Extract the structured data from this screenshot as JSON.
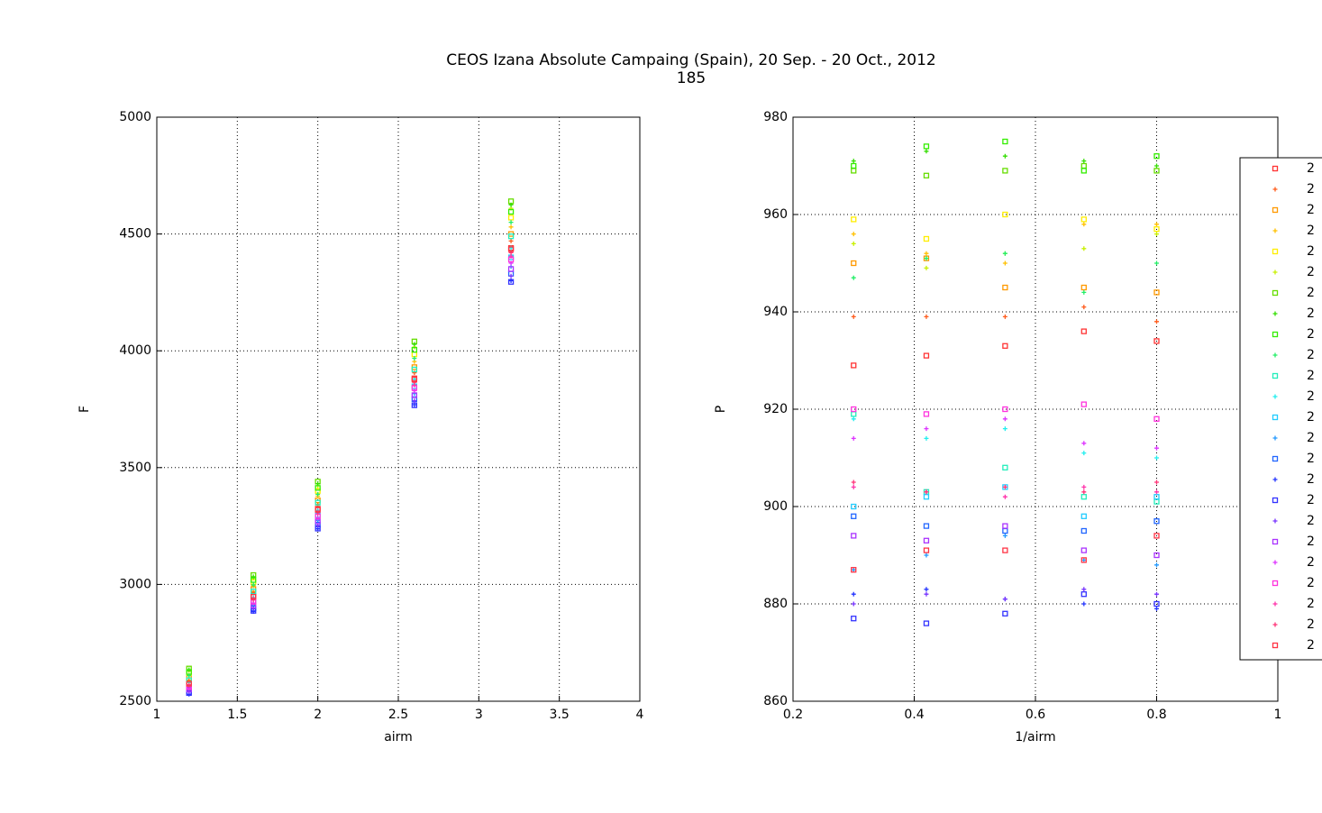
{
  "title": "CEOS Izana Absolute Campaing (Spain), 20 Sep. - 20 Oct., 2012",
  "subtitle": "185",
  "chart_data": [
    {
      "type": "scatter",
      "xlabel": "airm",
      "ylabel": "F",
      "xlim": [
        1,
        4
      ],
      "xticks": [
        1,
        1.5,
        2,
        2.5,
        3,
        3.5,
        4
      ],
      "ylim": [
        2500,
        5000
      ],
      "yticks": [
        2500,
        3000,
        3500,
        4000,
        4500,
        5000
      ],
      "grid": true,
      "x": [
        1.2,
        1.6,
        2.0,
        2.6,
        3.2
      ],
      "series": [
        {
          "name": "2",
          "color": "#ff3333",
          "marker": "square",
          "values": [
            2580,
            2952,
            3324,
            3882,
            4440
          ]
        },
        {
          "name": "2",
          "color": "#ff5a1a",
          "marker": "plus",
          "values": [
            2590,
            2966,
            3342,
            3906,
            4470
          ]
        },
        {
          "name": "2",
          "color": "#ff9900",
          "marker": "square",
          "values": [
            2600,
            2980,
            3360,
            3930,
            4500
          ]
        },
        {
          "name": "2",
          "color": "#ffc000",
          "marker": "plus",
          "values": [
            2610,
            2994,
            3378,
            3954,
            4530
          ]
        },
        {
          "name": "2",
          "color": "#ffee00",
          "marker": "square",
          "values": [
            2620,
            3010,
            3400,
            3985,
            4570
          ]
        },
        {
          "name": "2",
          "color": "#c8f000",
          "marker": "plus",
          "values": [
            2630,
            3026,
            3422,
            4016,
            4610
          ]
        },
        {
          "name": "2",
          "color": "#66dd00",
          "marker": "square",
          "values": [
            2640,
            3040,
            3440,
            4040,
            4640
          ]
        },
        {
          "name": "2",
          "color": "#33dd00",
          "marker": "plus",
          "values": [
            2635,
            3033,
            3431,
            4028,
            4625
          ]
        },
        {
          "name": "2",
          "color": "#33ee00",
          "marker": "square",
          "values": [
            2625,
            3019,
            3413,
            4004,
            4595
          ]
        },
        {
          "name": "2",
          "color": "#22ee66",
          "marker": "plus",
          "values": [
            2610,
            2998,
            3386,
            3968,
            4550
          ]
        },
        {
          "name": "2",
          "color": "#22eebb",
          "marker": "square",
          "values": [
            2590,
            2970,
            3350,
            3920,
            4490
          ]
        },
        {
          "name": "2",
          "color": "#22eeee",
          "marker": "plus",
          "values": [
            2570,
            2944,
            3318,
            3879,
            4440
          ]
        },
        {
          "name": "2",
          "color": "#22ccff",
          "marker": "square",
          "values": [
            2560,
            2928,
            3296,
            3848,
            4400
          ]
        },
        {
          "name": "2",
          "color": "#2299ff",
          "marker": "plus",
          "values": [
            2550,
            2912,
            3274,
            3817,
            4360
          ]
        },
        {
          "name": "2",
          "color": "#2266ff",
          "marker": "square",
          "values": [
            2540,
            2898,
            3256,
            3793,
            4330
          ]
        },
        {
          "name": "2",
          "color": "#2233ff",
          "marker": "plus",
          "values": [
            2530,
            2884,
            3238,
            3769,
            4300
          ]
        },
        {
          "name": "2",
          "color": "#3333ff",
          "marker": "square",
          "values": [
            2535,
            2887,
            3239,
            3767,
            4295
          ]
        },
        {
          "name": "2",
          "color": "#7733ff",
          "marker": "plus",
          "values": [
            2540,
            2896,
            3252,
            3786,
            4320
          ]
        },
        {
          "name": "2",
          "color": "#aa33ff",
          "marker": "square",
          "values": [
            2550,
            2910,
            3270,
            3810,
            4350
          ]
        },
        {
          "name": "2",
          "color": "#dd33ff",
          "marker": "plus",
          "values": [
            2555,
            2919,
            3283,
            3829,
            4375
          ]
        },
        {
          "name": "2",
          "color": "#ff33dd",
          "marker": "square",
          "values": [
            2560,
            2926,
            3292,
            3841,
            4390
          ]
        },
        {
          "name": "2",
          "color": "#ff33aa",
          "marker": "plus",
          "values": [
            2565,
            2933,
            3301,
            3853,
            4405
          ]
        },
        {
          "name": "2",
          "color": "#ff3377",
          "marker": "plus",
          "values": [
            2570,
            2940,
            3310,
            3865,
            4420
          ]
        },
        {
          "name": "2",
          "color": "#ff3344",
          "marker": "square",
          "values": [
            2575,
            2947,
            3319,
            3877,
            4435
          ]
        }
      ]
    },
    {
      "type": "scatter",
      "xlabel": "1/airm",
      "ylabel": "P",
      "xlim": [
        0.2,
        1
      ],
      "xticks": [
        0.2,
        0.4,
        0.6,
        0.8,
        1
      ],
      "ylim": [
        860,
        980
      ],
      "yticks": [
        860,
        880,
        900,
        920,
        940,
        960,
        980
      ],
      "grid": true,
      "legend": "right",
      "x": [
        0.3,
        0.42,
        0.55,
        0.68,
        0.8
      ],
      "series": [
        {
          "name": "2",
          "color": "#ff3333",
          "marker": "square",
          "values": [
            929,
            931,
            933,
            936,
            934
          ]
        },
        {
          "name": "2",
          "color": "#ff5a1a",
          "marker": "plus",
          "values": [
            939,
            939,
            939,
            941,
            938
          ]
        },
        {
          "name": "2",
          "color": "#ff9900",
          "marker": "square",
          "values": [
            950,
            951,
            945,
            945,
            944
          ]
        },
        {
          "name": "2",
          "color": "#ffc000",
          "marker": "plus",
          "values": [
            956,
            952,
            950,
            958,
            958
          ]
        },
        {
          "name": "2",
          "color": "#ffee00",
          "marker": "square",
          "values": [
            959,
            955,
            960,
            959,
            957
          ]
        },
        {
          "name": "2",
          "color": "#c8f000",
          "marker": "plus",
          "values": [
            954,
            949,
            952,
            953,
            956
          ]
        },
        {
          "name": "2",
          "color": "#66dd00",
          "marker": "square",
          "values": [
            969,
            968,
            969,
            970,
            969
          ]
        },
        {
          "name": "2",
          "color": "#33dd00",
          "marker": "plus",
          "values": [
            971,
            973,
            972,
            971,
            970
          ]
        },
        {
          "name": "2",
          "color": "#33ee00",
          "marker": "square",
          "values": [
            970,
            974,
            975,
            969,
            972
          ]
        },
        {
          "name": "2",
          "color": "#22ee66",
          "marker": "plus",
          "values": [
            947,
            951,
            952,
            944,
            950
          ]
        },
        {
          "name": "2",
          "color": "#22eebb",
          "marker": "square",
          "values": [
            919,
            903,
            908,
            902,
            901
          ]
        },
        {
          "name": "2",
          "color": "#22eeee",
          "marker": "plus",
          "values": [
            918,
            914,
            916,
            911,
            910
          ]
        },
        {
          "name": "2",
          "color": "#22ccff",
          "marker": "square",
          "values": [
            900,
            902,
            904,
            898,
            902
          ]
        },
        {
          "name": "2",
          "color": "#2299ff",
          "marker": "plus",
          "values": [
            887,
            890,
            894,
            889,
            888
          ]
        },
        {
          "name": "2",
          "color": "#2266ff",
          "marker": "square",
          "values": [
            898,
            896,
            895,
            895,
            897
          ]
        },
        {
          "name": "2",
          "color": "#2233ff",
          "marker": "plus",
          "values": [
            882,
            883,
            881,
            880,
            879
          ]
        },
        {
          "name": "2",
          "color": "#3333ff",
          "marker": "square",
          "values": [
            877,
            876,
            878,
            882,
            880
          ]
        },
        {
          "name": "2",
          "color": "#7733ff",
          "marker": "plus",
          "values": [
            880,
            882,
            881,
            883,
            882
          ]
        },
        {
          "name": "2",
          "color": "#aa33ff",
          "marker": "square",
          "values": [
            894,
            893,
            896,
            891,
            890
          ]
        },
        {
          "name": "2",
          "color": "#dd33ff",
          "marker": "plus",
          "values": [
            914,
            916,
            918,
            913,
            912
          ]
        },
        {
          "name": "2",
          "color": "#ff33dd",
          "marker": "square",
          "values": [
            920,
            919,
            920,
            921,
            918
          ]
        },
        {
          "name": "2",
          "color": "#ff33aa",
          "marker": "plus",
          "values": [
            904,
            903,
            902,
            904,
            903
          ]
        },
        {
          "name": "2",
          "color": "#ff3377",
          "marker": "plus",
          "values": [
            905,
            903,
            904,
            903,
            905
          ]
        },
        {
          "name": "2",
          "color": "#ff3344",
          "marker": "square",
          "values": [
            887,
            891,
            891,
            889,
            894
          ]
        }
      ]
    }
  ]
}
